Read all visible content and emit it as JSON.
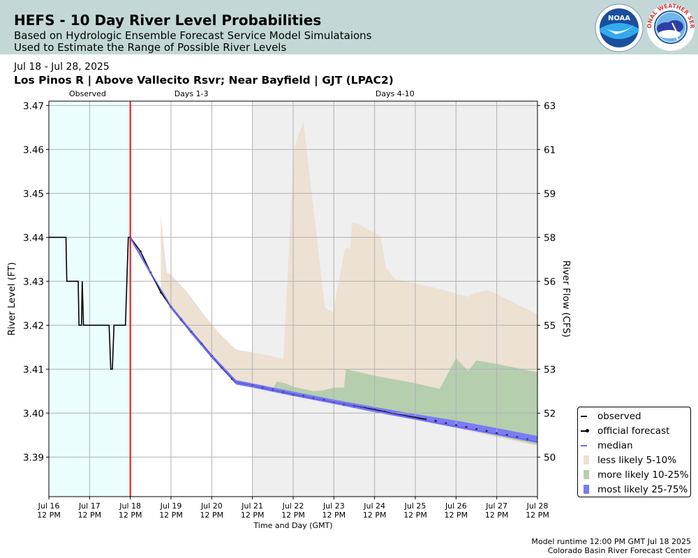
{
  "header": {
    "title": "HEFS - 10 Day River Level Probabilities",
    "subtitle_line1": "Based on Hydrologic Ensemble Forecast Service Model Simulataions",
    "subtitle_line2": "Used to Estimate the Range of Possible River Levels",
    "noaa_logo_text": "NOAA",
    "nws_logo_text": "NATIONAL WEATHER SERVICE"
  },
  "date_range": "Jul 18 - Jul 28, 2025",
  "station": "Los Pinos R | Above Vallecito Rsvr; Near Bayfield | GJT (LPAC2)",
  "footer": {
    "line1": "Model runtime 12:00 PM GMT Jul 18 2025",
    "line2": "Colorado Basin River Forecast Center"
  },
  "chart_data": {
    "type": "area",
    "xlabel": "Time and Day (GMT)",
    "ylabel": "River Level (FT)",
    "y2label": "River Flow (CFS)",
    "xlim": [
      0,
      12
    ],
    "ylim": [
      3.381,
      3.471
    ],
    "period_labels": [
      {
        "label": "Observed",
        "x": 0.95
      },
      {
        "label": "Days 1-3",
        "x": 3.5
      },
      {
        "label": "Days 4-10",
        "x": 8.5
      }
    ],
    "observed_region": [
      0,
      2
    ],
    "forecast_shade_start": 5,
    "forecast_start_line": 2,
    "x_ticks": [
      {
        "x": 0,
        "line1": "Jul 16",
        "line2": "12 PM"
      },
      {
        "x": 1,
        "line1": "Jul 17",
        "line2": "12 PM"
      },
      {
        "x": 2,
        "line1": "Jul 18",
        "line2": "12 PM"
      },
      {
        "x": 3,
        "line1": "Jul 19",
        "line2": "12 PM"
      },
      {
        "x": 4,
        "line1": "Jul 20",
        "line2": "12 PM"
      },
      {
        "x": 5,
        "line1": "Jul 21",
        "line2": "12 PM"
      },
      {
        "x": 6,
        "line1": "Jul 22",
        "line2": "12 PM"
      },
      {
        "x": 7,
        "line1": "Jul 23",
        "line2": "12 PM"
      },
      {
        "x": 8,
        "line1": "Jul 24",
        "line2": "12 PM"
      },
      {
        "x": 9,
        "line1": "Jul 25",
        "line2": "12 PM"
      },
      {
        "x": 10,
        "line1": "Jul 26",
        "line2": "12 PM"
      },
      {
        "x": 11,
        "line1": "Jul 27",
        "line2": "12 PM"
      },
      {
        "x": 12,
        "line1": "Jul 28",
        "line2": "12 PM"
      }
    ],
    "y_ticks": [
      "3.39",
      "3.40",
      "3.41",
      "3.42",
      "3.43",
      "3.44",
      "3.45",
      "3.46",
      "3.47"
    ],
    "y2_ticks": [
      {
        "label": "50",
        "stage": 3.39
      },
      {
        "label": "52",
        "stage": 3.4
      },
      {
        "label": "53",
        "stage": 3.41
      },
      {
        "label": "55",
        "stage": 3.42
      },
      {
        "label": "56",
        "stage": 3.43
      },
      {
        "label": "58",
        "stage": 3.44
      },
      {
        "label": "59",
        "stage": 3.45
      },
      {
        "label": "61",
        "stage": 3.46
      },
      {
        "label": "63",
        "stage": 3.47
      }
    ],
    "series": [
      {
        "name": "observed",
        "color": "#000000",
        "points": [
          [
            0,
            3.44
          ],
          [
            0.42,
            3.44
          ],
          [
            0.44,
            3.43
          ],
          [
            0.72,
            3.43
          ],
          [
            0.74,
            3.42
          ],
          [
            0.8,
            3.42
          ],
          [
            0.82,
            3.43
          ],
          [
            0.85,
            3.42
          ],
          [
            1.48,
            3.42
          ],
          [
            1.52,
            3.41
          ],
          [
            1.56,
            3.41
          ],
          [
            1.6,
            3.42
          ],
          [
            1.88,
            3.42
          ],
          [
            1.95,
            3.44
          ],
          [
            2.02,
            3.44
          ]
        ]
      },
      {
        "name": "official forecast",
        "color": "#000000",
        "points": [
          [
            2,
            3.44
          ],
          [
            2.25,
            3.4368
          ],
          [
            2.5,
            3.432
          ],
          [
            2.75,
            3.4275
          ],
          [
            3,
            3.4242
          ],
          [
            3.25,
            3.4213
          ],
          [
            3.5,
            3.4185
          ],
          [
            3.75,
            3.4158
          ],
          [
            4,
            3.413
          ],
          [
            4.25,
            3.4104
          ],
          [
            4.6,
            3.407
          ],
          [
            5,
            3.4063
          ],
          [
            5.5,
            3.4053
          ],
          [
            6,
            3.4043
          ],
          [
            6.5,
            3.4034
          ],
          [
            7,
            3.4025
          ],
          [
            7.5,
            3.4016
          ],
          [
            8,
            3.4008
          ],
          [
            8.5,
            3.3998
          ],
          [
            9,
            3.399
          ],
          [
            9.25,
            3.3986
          ]
        ],
        "marker_points": [
          [
            2.25,
            3.4368
          ],
          [
            2.5,
            3.432
          ],
          [
            2.75,
            3.4275
          ],
          [
            3,
            3.4242
          ],
          [
            3.25,
            3.4213
          ],
          [
            3.5,
            3.4185
          ],
          [
            3.75,
            3.4158
          ],
          [
            4,
            3.413
          ],
          [
            4.25,
            3.4104
          ],
          [
            4.5,
            3.4078
          ],
          [
            5,
            3.4063
          ],
          [
            5.25,
            3.4058
          ],
          [
            5.5,
            3.4053
          ],
          [
            5.75,
            3.4048
          ],
          [
            6,
            3.4043
          ],
          [
            6.25,
            3.4039
          ],
          [
            6.5,
            3.4034
          ],
          [
            6.75,
            3.403
          ],
          [
            7,
            3.4025
          ],
          [
            7.25,
            3.402
          ],
          [
            7.5,
            3.4016
          ],
          [
            7.75,
            3.4012
          ],
          [
            8,
            3.4008
          ],
          [
            8.25,
            3.4003
          ],
          [
            8.5,
            3.3998
          ],
          [
            8.75,
            3.3994
          ],
          [
            9,
            3.399
          ],
          [
            9.25,
            3.3986
          ],
          [
            9.5,
            3.3982
          ],
          [
            9.75,
            3.3977
          ],
          [
            10,
            3.3972
          ],
          [
            10.25,
            3.3968
          ],
          [
            10.5,
            3.3963
          ],
          [
            10.75,
            3.3959
          ],
          [
            11,
            3.3954
          ],
          [
            11.25,
            3.395
          ],
          [
            11.5,
            3.3945
          ],
          [
            11.75,
            3.394
          ]
        ]
      },
      {
        "name": "median",
        "color": "#6666ff",
        "points": [
          [
            2,
            3.44
          ],
          [
            2.5,
            3.432
          ],
          [
            3,
            3.4242
          ],
          [
            3.5,
            3.4185
          ],
          [
            4,
            3.413
          ],
          [
            4.6,
            3.407
          ],
          [
            5,
            3.4063
          ],
          [
            6,
            3.4043
          ],
          [
            7,
            3.4025
          ],
          [
            8,
            3.4006
          ],
          [
            9,
            3.3988
          ],
          [
            10,
            3.397
          ],
          [
            11,
            3.3952
          ],
          [
            12,
            3.3935
          ]
        ]
      }
    ],
    "bands": [
      {
        "name": "less likely 5-10%",
        "color": "#ede1d3",
        "upper": [
          [
            2.75,
            3.4455
          ],
          [
            2.8,
            3.44
          ],
          [
            2.9,
            3.432
          ],
          [
            3,
            3.4315
          ],
          [
            3.4,
            3.4275
          ],
          [
            3.8,
            3.4225
          ],
          [
            4.2,
            3.418
          ],
          [
            4.6,
            3.4145
          ],
          [
            5.2,
            3.4135
          ],
          [
            5.6,
            3.4127
          ],
          [
            5.76,
            3.4122
          ],
          [
            6.02,
            3.4602
          ],
          [
            6.25,
            3.4665
          ],
          [
            6.78,
            3.424
          ],
          [
            6.98,
            3.423
          ],
          [
            7.27,
            3.4375
          ],
          [
            7.4,
            3.4375
          ],
          [
            7.45,
            3.4435
          ],
          [
            7.6,
            3.443
          ],
          [
            8.15,
            3.4403
          ],
          [
            8.28,
            3.433
          ],
          [
            8.5,
            3.4305
          ],
          [
            9.5,
            3.4285
          ],
          [
            10.3,
            3.4265
          ],
          [
            10.5,
            3.4275
          ],
          [
            10.8,
            3.428
          ],
          [
            12,
            3.4225
          ]
        ],
        "lower": [
          [
            12,
            3.3925
          ],
          [
            11,
            3.3945
          ],
          [
            10,
            3.3965
          ],
          [
            9,
            3.3985
          ],
          [
            8,
            3.4003
          ],
          [
            7,
            3.4022
          ],
          [
            6,
            3.404
          ],
          [
            5,
            3.406
          ],
          [
            4.6,
            3.4068
          ],
          [
            4,
            3.4126
          ],
          [
            3.5,
            3.418
          ],
          [
            3,
            3.4235
          ],
          [
            2.75,
            3.427
          ]
        ]
      },
      {
        "name": "more likely 10-25%",
        "color": "#b5ceae",
        "upper": [
          [
            5.5,
            3.4055
          ],
          [
            5.6,
            3.4072
          ],
          [
            5.8,
            3.4068
          ],
          [
            6,
            3.406
          ],
          [
            6.5,
            3.405
          ],
          [
            6.75,
            3.4052
          ],
          [
            7,
            3.4058
          ],
          [
            7.25,
            3.4058
          ],
          [
            7.3,
            3.41
          ],
          [
            8,
            3.4085
          ],
          [
            9,
            3.4068
          ],
          [
            9.6,
            3.4055
          ],
          [
            10,
            3.4125
          ],
          [
            10.3,
            3.4095
          ],
          [
            10.5,
            3.412
          ],
          [
            11,
            3.4112
          ],
          [
            12,
            3.4093
          ]
        ],
        "lower": [
          [
            12,
            3.3928
          ],
          [
            11,
            3.3948
          ],
          [
            10,
            3.3968
          ],
          [
            9,
            3.3986
          ],
          [
            8,
            3.4004
          ],
          [
            7,
            3.4022
          ],
          [
            6,
            3.4041
          ],
          [
            5.5,
            3.4052
          ]
        ]
      },
      {
        "name": "most likely 25-75%",
        "color": "#7b7bf5",
        "upper": [
          [
            2,
            3.44
          ],
          [
            2.5,
            3.4322
          ],
          [
            3,
            3.4245
          ],
          [
            3.5,
            3.4189
          ],
          [
            4,
            3.4134
          ],
          [
            4.6,
            3.4075
          ],
          [
            5,
            3.4068
          ],
          [
            6,
            3.4049
          ],
          [
            7,
            3.4031
          ],
          [
            8,
            3.4014
          ],
          [
            9,
            3.3998
          ],
          [
            10,
            3.3983
          ],
          [
            11,
            3.3966
          ],
          [
            12,
            3.3948
          ]
        ],
        "lower": [
          [
            12,
            3.3932
          ],
          [
            11,
            3.395
          ],
          [
            10,
            3.3967
          ],
          [
            9,
            3.3985
          ],
          [
            8,
            3.4002
          ],
          [
            7,
            3.4021
          ],
          [
            6,
            3.4039
          ],
          [
            5,
            3.4058
          ],
          [
            4.6,
            3.4065
          ],
          [
            4,
            3.4125
          ],
          [
            3.5,
            3.418
          ],
          [
            3,
            3.4238
          ],
          [
            2.5,
            3.4315
          ],
          [
            2,
            3.4395
          ]
        ]
      }
    ],
    "legend": [
      {
        "label": "observed",
        "kind": "line",
        "color": "#000000"
      },
      {
        "label": "official forecast",
        "kind": "line-dot",
        "color": "#000000"
      },
      {
        "label": "median",
        "kind": "line",
        "color": "#6666ff"
      },
      {
        "label": "less likely 5-10%",
        "kind": "patch",
        "color": "#ede1d3"
      },
      {
        "label": "more likely 10-25%",
        "kind": "patch",
        "color": "#b5ceae"
      },
      {
        "label": "most likely 25-75%",
        "kind": "patch",
        "color": "#7b7bf5"
      }
    ],
    "legend_position": "lower-right outside",
    "grid": true
  }
}
